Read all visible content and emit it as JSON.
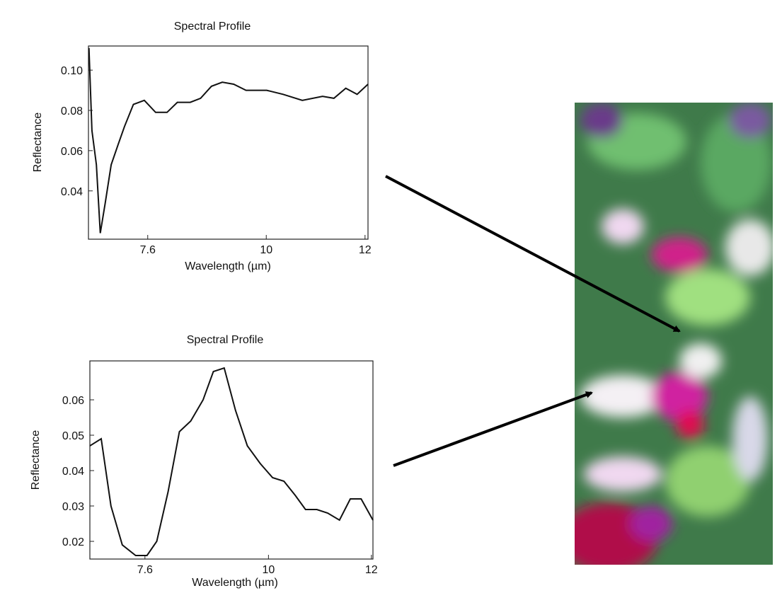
{
  "chart_data": [
    {
      "type": "line",
      "title": "Spectral Profile",
      "x_label": "Wavelength (µm)",
      "y_label": "Reflectance",
      "xlim": [
        6.4,
        12.06
      ],
      "xticks": [
        7.6,
        10,
        12
      ],
      "ylim": [
        0.016,
        0.112
      ],
      "yticks": [
        0.04,
        0.06,
        0.08,
        {
          "value": 0.1,
          "label": "0.10"
        }
      ],
      "series": [
        {
          "color": "#111111",
          "x": [
            6.41,
            6.47,
            6.56,
            6.64,
            6.74,
            6.86,
            7.0,
            7.13,
            7.31,
            7.53,
            7.76,
            7.99,
            8.2,
            8.46,
            8.67,
            8.89,
            9.11,
            9.34,
            9.59,
            10.01,
            10.34,
            10.73,
            11.14,
            11.37,
            11.61,
            11.84,
            12.06
          ],
          "values": [
            0.111,
            0.07,
            0.053,
            0.019,
            0.034,
            0.053,
            0.063,
            0.072,
            0.083,
            0.085,
            0.079,
            0.079,
            0.084,
            0.084,
            0.086,
            0.092,
            0.094,
            0.093,
            0.09,
            0.09,
            0.088,
            0.085,
            0.087,
            0.086,
            0.091,
            0.088,
            0.093
          ]
        }
      ]
    },
    {
      "type": "line",
      "title": "Spectral Profile",
      "x_label": "Wavelength (µm)",
      "y_label": "Reflectance",
      "xlim": [
        6.53,
        12.03
      ],
      "xticks": [
        7.6,
        10,
        12
      ],
      "ylim": [
        0.015,
        0.071
      ],
      "yticks": [
        0.02,
        0.03,
        0.04,
        0.05,
        0.06
      ],
      "series": [
        {
          "color": "#111111",
          "x": [
            6.53,
            6.75,
            6.94,
            7.16,
            7.42,
            7.64,
            7.83,
            8.05,
            8.27,
            8.49,
            8.73,
            8.93,
            9.14,
            9.36,
            9.59,
            9.84,
            10.08,
            10.3,
            10.52,
            10.72,
            10.94,
            11.15,
            11.38,
            11.59,
            11.8,
            12.03
          ],
          "values": [
            0.047,
            0.049,
            0.03,
            0.019,
            0.016,
            0.016,
            0.02,
            0.034,
            0.051,
            0.054,
            0.06,
            0.068,
            0.069,
            0.057,
            0.047,
            0.042,
            0.038,
            0.037,
            0.033,
            0.029,
            0.029,
            0.028,
            0.026,
            0.032,
            0.032,
            0.026
          ]
        }
      ]
    }
  ]
}
